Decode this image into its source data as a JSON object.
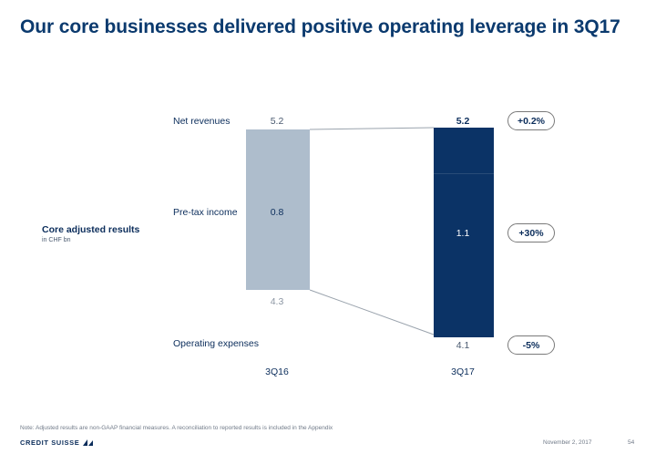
{
  "title": "Our core businesses delivered positive operating leverage in 3Q17",
  "side": {
    "title": "Core adjusted results",
    "subtitle": "in CHF bn"
  },
  "rows": {
    "net_revenues": "Net revenues",
    "pretax_income": "Pre-tax income",
    "operating_expenses": "Operating expenses"
  },
  "chart_data": {
    "type": "bar",
    "categories": [
      "3Q16",
      "3Q17"
    ],
    "series": [
      {
        "name": "Net revenues",
        "values": [
          5.2,
          5.2
        ]
      },
      {
        "name": "Pre-tax income",
        "values": [
          0.8,
          1.1
        ]
      },
      {
        "name": "Operating expenses",
        "values": [
          4.3,
          4.1
        ]
      }
    ],
    "labels": {
      "3Q16": {
        "net_revenues": "5.2",
        "pretax_income": "0.8",
        "operating_expenses": "4.3"
      },
      "3Q17": {
        "net_revenues": "5.2",
        "pretax_income": "1.1",
        "operating_expenses": "4.1"
      }
    },
    "changes": {
      "net_revenues": "+0.2%",
      "pretax_income": "+30%",
      "operating_expenses": "-5%"
    },
    "colors": {
      "3Q16": "#aebdcc",
      "3Q17": "#0b3366"
    }
  },
  "note": "Note: Adjusted results are non-GAAP financial measures. A reconciliation to reported results is included in the Appendix",
  "footer": {
    "brand": "CREDIT SUISSE",
    "date": "November 2, 2017",
    "page": "54"
  }
}
